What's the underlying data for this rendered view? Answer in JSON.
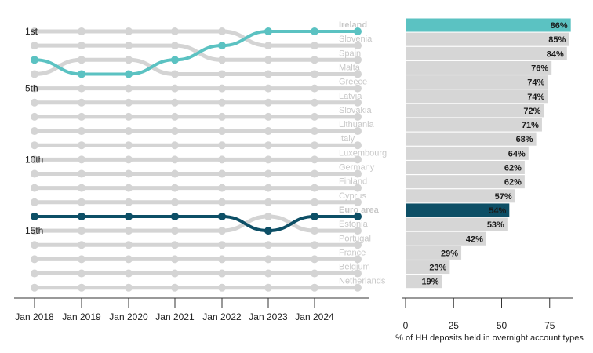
{
  "colors": {
    "grey_line": "#d4d4d4",
    "grey_bar": "#d6d6d6",
    "label_grey": "#c8c8c8",
    "ireland": "#5bc2c2",
    "euro_area": "#0d4f66",
    "axis": "#333333"
  },
  "chart_data": [
    {
      "type": "bump",
      "x": [
        "Jan 2018",
        "Jan 2019",
        "Jan 2020",
        "Jan 2021",
        "Jan 2022",
        "Jan 2023",
        "Jan 2024"
      ],
      "rank_labels": [
        {
          "rank": 1,
          "label": "1st"
        },
        {
          "rank": 5,
          "label": "5th"
        },
        {
          "rank": 10,
          "label": "10th"
        },
        {
          "rank": 15,
          "label": "15th"
        }
      ],
      "ylim": [
        1,
        19
      ],
      "highlighted": [
        "Ireland",
        "Euro area"
      ],
      "series": [
        {
          "name": "Ireland",
          "ranks": [
            3,
            4,
            4,
            3,
            2,
            1,
            1
          ]
        },
        {
          "name": "Slovenia",
          "ranks": [
            1,
            1,
            1,
            1,
            1,
            2,
            2
          ]
        },
        {
          "name": "Spain",
          "ranks": [
            2,
            2,
            2,
            2,
            3,
            3,
            3
          ]
        },
        {
          "name": "Malta",
          "ranks": [
            4,
            3,
            3,
            4,
            4,
            4,
            4
          ]
        },
        {
          "name": "Greece",
          "ranks": [
            5,
            5,
            5,
            5,
            5,
            5,
            5
          ]
        },
        {
          "name": "Latvia",
          "ranks": [
            6,
            6,
            6,
            6,
            6,
            6,
            6
          ]
        },
        {
          "name": "Slovakia",
          "ranks": [
            7,
            7,
            7,
            7,
            7,
            7,
            7
          ]
        },
        {
          "name": "Lithuania",
          "ranks": [
            8,
            8,
            8,
            8,
            8,
            8,
            8
          ]
        },
        {
          "name": "Italy",
          "ranks": [
            9,
            9,
            9,
            9,
            9,
            9,
            9
          ]
        },
        {
          "name": "Luxembourg",
          "ranks": [
            10,
            10,
            10,
            10,
            10,
            10,
            10
          ]
        },
        {
          "name": "Germany",
          "ranks": [
            11,
            11,
            11,
            11,
            11,
            11,
            11
          ]
        },
        {
          "name": "Finland",
          "ranks": [
            12,
            12,
            12,
            12,
            12,
            12,
            12
          ]
        },
        {
          "name": "Cyprus",
          "ranks": [
            13,
            13,
            13,
            13,
            13,
            13,
            13
          ]
        },
        {
          "name": "Euro area",
          "ranks": [
            14,
            14,
            14,
            14,
            14,
            15,
            14
          ]
        },
        {
          "name": "Estonia",
          "ranks": [
            15,
            15,
            15,
            15,
            15,
            14,
            15
          ]
        },
        {
          "name": "Portugal",
          "ranks": [
            16,
            16,
            16,
            16,
            16,
            16,
            16
          ]
        },
        {
          "name": "France",
          "ranks": [
            17,
            17,
            17,
            17,
            17,
            17,
            17
          ]
        },
        {
          "name": "Belgium",
          "ranks": [
            18,
            18,
            18,
            18,
            18,
            18,
            18
          ]
        },
        {
          "name": "Netherlands",
          "ranks": [
            19,
            19,
            19,
            19,
            19,
            19,
            19
          ]
        }
      ]
    },
    {
      "type": "bar",
      "orientation": "horizontal",
      "categories": [
        "Ireland",
        "Slovenia",
        "Spain",
        "Malta",
        "Greece",
        "Latvia",
        "Slovakia",
        "Lithuania",
        "Italy",
        "Luxembourg",
        "Germany",
        "Finland",
        "Cyprus",
        "Euro area",
        "Estonia",
        "Portugal",
        "France",
        "Belgium",
        "Netherlands"
      ],
      "values": [
        86,
        85,
        84,
        76,
        74,
        74,
        72,
        71,
        68,
        64,
        62,
        62,
        57,
        54,
        53,
        42,
        29,
        23,
        19
      ],
      "data_labels": [
        "86%",
        "85%",
        "84%",
        "76%",
        "74%",
        "74%",
        "72%",
        "71%",
        "68%",
        "64%",
        "62%",
        "62%",
        "57%",
        "54%",
        "53%",
        "42%",
        "29%",
        "23%",
        "19%"
      ],
      "xticks": [
        "0",
        "25",
        "50",
        "75"
      ],
      "xlim": [
        0,
        90
      ],
      "xlabel": "% of HH deposits held in overnight account types"
    }
  ]
}
